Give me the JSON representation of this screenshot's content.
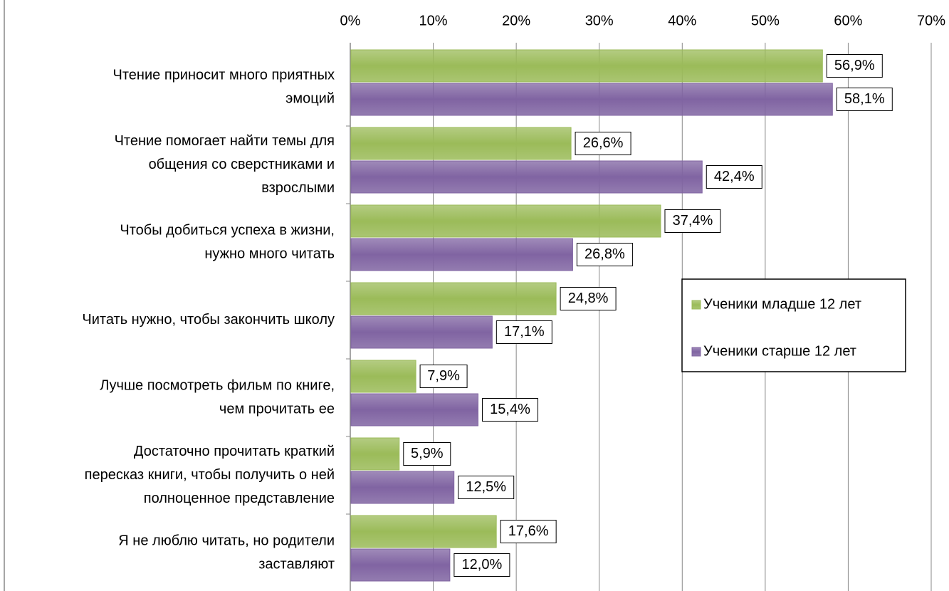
{
  "chart_data": {
    "type": "bar",
    "orientation": "horizontal",
    "categories": [
      [
        "Чтение приносит много приятных",
        "эмоций"
      ],
      [
        "Чтение помогает найти темы для",
        "общения со сверстниками и",
        "взрослыми"
      ],
      [
        "Чтобы добиться успеха в жизни,",
        "нужно много читать"
      ],
      [
        "Читать нужно, чтобы закончить школу"
      ],
      [
        "Лучше посмотреть фильм по книге,",
        "чем прочитать ее"
      ],
      [
        "Достаточно прочитать краткий",
        "пересказ книги, чтобы получить о ней",
        "полноценное представление"
      ],
      [
        "Я не люблю читать, но родители",
        "заставляют"
      ]
    ],
    "series": [
      {
        "name": "Ученики младше 12 лет",
        "color": "#9bbb59",
        "values": [
          56.9,
          26.6,
          37.4,
          24.8,
          7.9,
          5.9,
          17.6
        ],
        "value_labels": [
          "56,9%",
          "26,6%",
          "37,4%",
          "24,8%",
          "7,9%",
          "5,9%",
          "17,6%"
        ]
      },
      {
        "name": "Ученики старше 12 лет",
        "color": "#8064a2",
        "values": [
          58.1,
          42.4,
          26.8,
          17.1,
          15.4,
          12.5,
          12.0
        ],
        "value_labels": [
          "58,1%",
          "42,4%",
          "26,8%",
          "17,1%",
          "15,4%",
          "12,5%",
          "12,0%"
        ]
      }
    ],
    "xlim": [
      0,
      70
    ],
    "xticks": [
      {
        "value": 0,
        "label": "0%"
      },
      {
        "value": 10,
        "label": "10%"
      },
      {
        "value": 20,
        "label": "20%"
      },
      {
        "value": 30,
        "label": "30%"
      },
      {
        "value": 40,
        "label": "40%"
      },
      {
        "value": 50,
        "label": "50%"
      },
      {
        "value": 60,
        "label": "60%"
      },
      {
        "value": 70,
        "label": "70%"
      }
    ],
    "grid": true,
    "legend": "right"
  }
}
